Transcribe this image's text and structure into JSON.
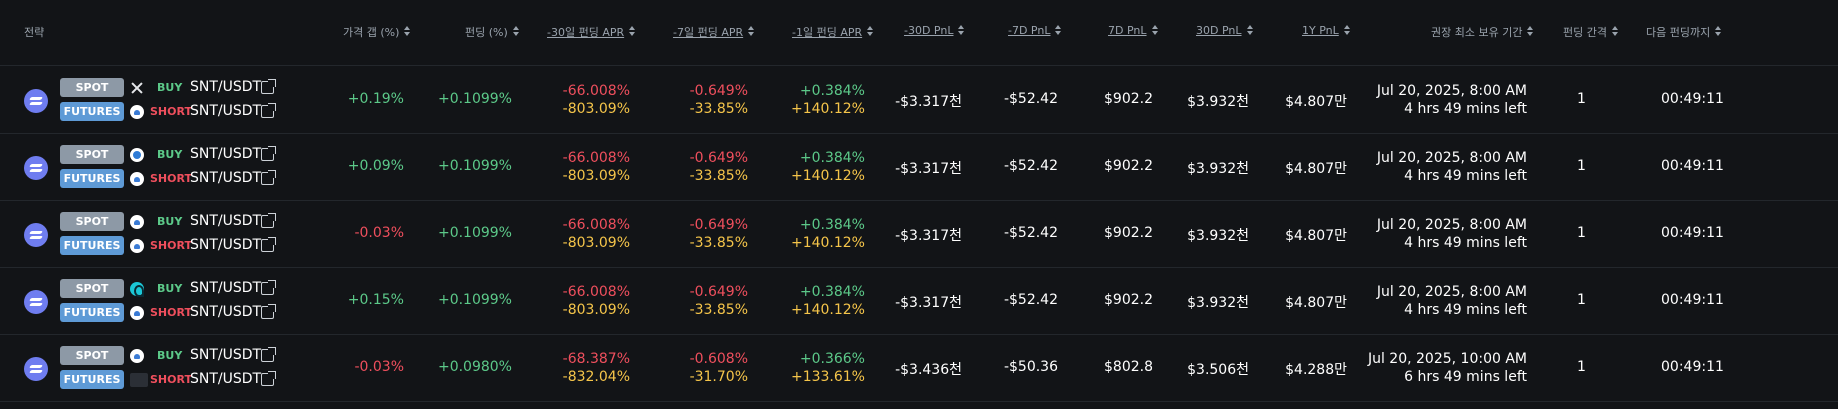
{
  "colors": {
    "positive": "#5cc989",
    "negative": "#ef4f5d",
    "warning": "#f5c54a",
    "spot_badge": "#8d99a6",
    "futures_badge": "#5e9ad6",
    "background": "#121417"
  },
  "header": {
    "strategy": "전략",
    "price_gap": "가격 갭 (%)",
    "funding": "펀딩 (%)",
    "apr_30d": "-30일 펀딩 APR",
    "apr_7d": "-7일 펀딩 APR",
    "apr_1d": "-1일 펀딩 APR",
    "pnl_m30": "-30D PnL",
    "pnl_m7": "-7D PnL",
    "pnl_7": "7D PnL",
    "pnl_30": "30D PnL",
    "pnl_1y": "1Y PnL",
    "hold": "권장 최소 보유 기간",
    "interval": "펀딩 간격",
    "next": "다음 펀딩까지"
  },
  "rows": [
    {
      "spot_label": "SPOT",
      "futures_label": "FUTURES",
      "buy": "BUY",
      "short": "SHORT",
      "spot_exchange_icon": "x-exchange-icon",
      "futures_exchange_icon": "cloud-exchange-icon",
      "spot_pair": "SNT/USDT",
      "futures_pair": "SNT/USDT",
      "price_gap": "+0.19%",
      "funding": "+0.1099%",
      "apr30_a": "-66.008%",
      "apr30_b": "-803.09%",
      "apr7_a": "-0.649%",
      "apr7_b": "-33.85%",
      "apr1_a": "+0.384%",
      "apr1_b": "+140.12%",
      "pnl_m30": "-$3.317천",
      "pnl_m7": "-$52.42",
      "pnl_7": "$902.2",
      "pnl_30": "$3.932천",
      "pnl_1y": "$4.807만",
      "hold_date": "Jul 20, 2025, 8:00 AM",
      "hold_left": "4 hrs 49 mins left",
      "interval": "1",
      "next": "00:49:11"
    },
    {
      "spot_label": "SPOT",
      "futures_label": "FUTURES",
      "buy": "BUY",
      "short": "SHORT",
      "spot_exchange_icon": "ring-exchange-icon",
      "futures_exchange_icon": "cloud-exchange-icon",
      "spot_pair": "SNT/USDT",
      "futures_pair": "SNT/USDT",
      "price_gap": "+0.09%",
      "funding": "+0.1099%",
      "apr30_a": "-66.008%",
      "apr30_b": "-803.09%",
      "apr7_a": "-0.649%",
      "apr7_b": "-33.85%",
      "apr1_a": "+0.384%",
      "apr1_b": "+140.12%",
      "pnl_m30": "-$3.317천",
      "pnl_m7": "-$52.42",
      "pnl_7": "$902.2",
      "pnl_30": "$3.932천",
      "pnl_1y": "$4.807만",
      "hold_date": "Jul 20, 2025, 8:00 AM",
      "hold_left": "4 hrs 49 mins left",
      "interval": "1",
      "next": "00:49:11"
    },
    {
      "spot_label": "SPOT",
      "futures_label": "FUTURES",
      "buy": "BUY",
      "short": "SHORT",
      "spot_exchange_icon": "cloud-exchange-icon",
      "futures_exchange_icon": "cloud-exchange-icon",
      "spot_pair": "SNT/USDT",
      "futures_pair": "SNT/USDT",
      "price_gap": "-0.03%",
      "funding": "+0.1099%",
      "apr30_a": "-66.008%",
      "apr30_b": "-803.09%",
      "apr7_a": "-0.649%",
      "apr7_b": "-33.85%",
      "apr1_a": "+0.384%",
      "apr1_b": "+140.12%",
      "pnl_m30": "-$3.317천",
      "pnl_m7": "-$52.42",
      "pnl_7": "$902.2",
      "pnl_30": "$3.932천",
      "pnl_1y": "$4.807만",
      "hold_date": "Jul 20, 2025, 8:00 AM",
      "hold_left": "4 hrs 49 mins left",
      "interval": "1",
      "next": "00:49:11"
    },
    {
      "spot_label": "SPOT",
      "futures_label": "FUTURES",
      "buy": "BUY",
      "short": "SHORT",
      "spot_exchange_icon": "teal-exchange-icon",
      "futures_exchange_icon": "cloud-exchange-icon",
      "spot_pair": "SNT/USDT",
      "futures_pair": "SNT/USDT",
      "price_gap": "+0.15%",
      "funding": "+0.1099%",
      "apr30_a": "-66.008%",
      "apr30_b": "-803.09%",
      "apr7_a": "-0.649%",
      "apr7_b": "-33.85%",
      "apr1_a": "+0.384%",
      "apr1_b": "+140.12%",
      "pnl_m30": "-$3.317천",
      "pnl_m7": "-$52.42",
      "pnl_7": "$902.2",
      "pnl_30": "$3.932천",
      "pnl_1y": "$4.807만",
      "hold_date": "Jul 20, 2025, 8:00 AM",
      "hold_left": "4 hrs 49 mins left",
      "interval": "1",
      "next": "00:49:11"
    },
    {
      "spot_label": "SPOT",
      "futures_label": "FUTURES",
      "buy": "BUY",
      "short": "SHORT",
      "spot_exchange_icon": "cloud-exchange-icon",
      "futures_exchange_icon": "word-exchange-icon",
      "spot_pair": "SNT/USDT",
      "futures_pair": "SNT/USDT",
      "price_gap": "-0.03%",
      "funding": "+0.0980%",
      "apr30_a": "-68.387%",
      "apr30_b": "-832.04%",
      "apr7_a": "-0.608%",
      "apr7_b": "-31.70%",
      "apr1_a": "+0.366%",
      "apr1_b": "+133.61%",
      "pnl_m30": "-$3.436천",
      "pnl_m7": "-$50.36",
      "pnl_7": "$802.8",
      "pnl_30": "$3.506천",
      "pnl_1y": "$4.288만",
      "hold_date": "Jul 20, 2025, 10:00 AM",
      "hold_left": "6 hrs 49 mins left",
      "interval": "1",
      "next": "00:49:11"
    }
  ]
}
